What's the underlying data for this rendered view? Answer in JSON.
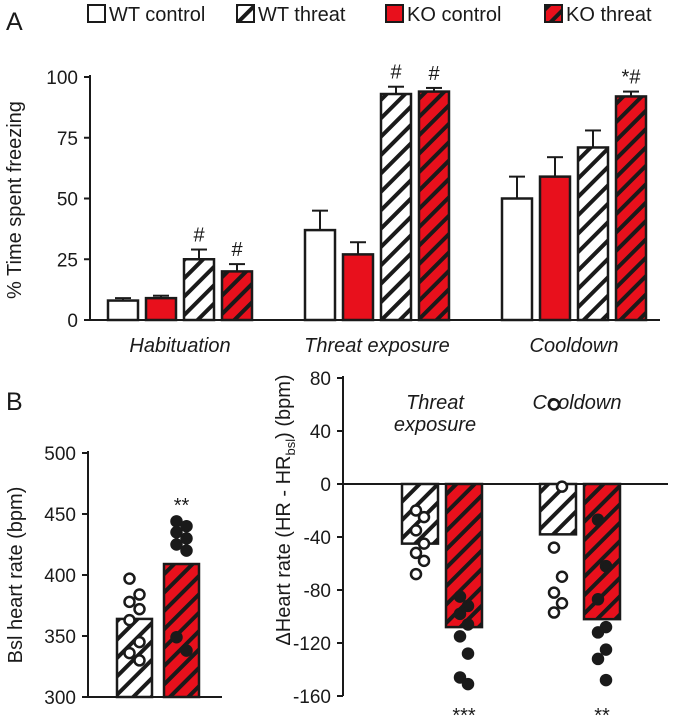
{
  "colors": {
    "white": "#ffffff",
    "red": "#e8101c",
    "black": "#1a1a1a"
  },
  "figure": {
    "panel_a_label": "A",
    "panel_b_label": "B",
    "legend": [
      {
        "label": "WT control",
        "fill": "white",
        "hatch": false
      },
      {
        "label": "WT threat",
        "fill": "white",
        "hatch": true
      },
      {
        "label": "KO control",
        "fill": "red",
        "hatch": false
      },
      {
        "label": "KO threat",
        "fill": "red",
        "hatch": true
      }
    ]
  },
  "chart_data": [
    {
      "id": "panel-a",
      "type": "bar",
      "ylabel": "% Time spent freezing",
      "ylim": [
        0,
        100
      ],
      "yticks": [
        0,
        25,
        50,
        75,
        100
      ],
      "ytick_labels": [
        "0",
        "25",
        "50",
        "75",
        "100"
      ],
      "categories": [
        "Habituation",
        "Threat exposure",
        "Cooldown"
      ],
      "series": [
        {
          "name": "WT control",
          "values": [
            8,
            37,
            50
          ],
          "errors": [
            1,
            8,
            9
          ],
          "marks": [
            "",
            "",
            ""
          ]
        },
        {
          "name": "KO control",
          "values": [
            9,
            27,
            59
          ],
          "errors": [
            1,
            5,
            8
          ],
          "marks": [
            "",
            "",
            ""
          ]
        },
        {
          "name": "WT threat",
          "values": [
            25,
            93,
            71
          ],
          "errors": [
            4,
            3,
            7
          ],
          "marks": [
            "#",
            "#",
            ""
          ]
        },
        {
          "name": "KO threat",
          "values": [
            20,
            94,
            92
          ],
          "errors": [
            3,
            1.5,
            2
          ],
          "marks": [
            "#",
            "#",
            "*#"
          ]
        }
      ]
    },
    {
      "id": "panel-b-left",
      "type": "bar",
      "ylabel": "Bsl heart rate (bpm)",
      "ylim": [
        300,
        500
      ],
      "yticks": [
        300,
        350,
        400,
        450,
        500
      ],
      "ytick_labels": [
        "300",
        "350",
        "400",
        "450",
        "500"
      ],
      "series": [
        {
          "name": "WT threat",
          "value": 364,
          "points": [
            397,
            384,
            378,
            372,
            363,
            345,
            336,
            330
          ],
          "mark": ""
        },
        {
          "name": "KO threat",
          "value": 409,
          "points": [
            444,
            440,
            435,
            430,
            425,
            420,
            349,
            338
          ],
          "mark": "**"
        }
      ]
    },
    {
      "id": "panel-b-right",
      "type": "bar",
      "ylabel": "ΔHeart rate (HR - HR",
      "ylabel_sub": "bsl",
      "ylabel_end": ") (bpm)",
      "ylim": [
        -160,
        80
      ],
      "yticks": [
        80,
        40,
        0,
        -40,
        -80,
        -120,
        -160
      ],
      "ytick_labels": [
        "80",
        "40",
        "0",
        "-40",
        "-80",
        "-120",
        "-160"
      ],
      "categories": [
        "Threat exposure",
        "Cooldown"
      ],
      "category_lines": [
        [
          "Threat",
          "exposure"
        ],
        [
          "Cooldown"
        ]
      ],
      "series": [
        {
          "name": "WT threat",
          "values": [
            -45,
            -38
          ],
          "points": [
            [
              -20,
              -25,
              -35,
              -45,
              -52,
              -58,
              -68
            ],
            [
              60,
              -2,
              -48,
              -70,
              -82,
              -90,
              -97
            ]
          ],
          "marks": [
            "",
            ""
          ]
        },
        {
          "name": "KO threat",
          "values": [
            -108,
            -102
          ],
          "points": [
            [
              -85,
              -92,
              -98,
              -106,
              -115,
              -128,
              -146,
              -151
            ],
            [
              -27,
              -62,
              -87,
              -108,
              -112,
              -125,
              -132,
              -148
            ]
          ],
          "marks": [
            "***",
            "**"
          ]
        }
      ]
    }
  ]
}
